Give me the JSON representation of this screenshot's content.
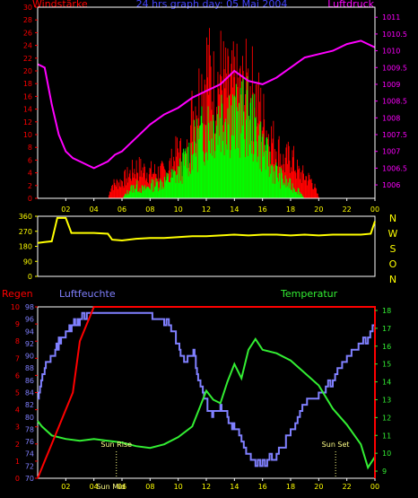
{
  "header": {
    "left_label": "Windstärke",
    "center_label": "24 hrs graph day: 05 Mai 2004",
    "right_label": "Luftdruck"
  },
  "colors": {
    "wind_gust": "#ff0000",
    "wind_avg": "#00ff00",
    "pressure": "#ff00ff",
    "direction": "#ffff00",
    "rain": "#ff0000",
    "humidity": "#8080ff",
    "temperature": "#33ee33",
    "frame": "#ffffff"
  },
  "chart_data": [
    {
      "type": "bar+line",
      "name_wind": "Windstärke",
      "name_pressure": "Luftdruck",
      "x_ticks": [
        "02",
        "04",
        "06",
        "08",
        "10",
        "12",
        "14",
        "16",
        "18",
        "20",
        "22",
        "00"
      ],
      "y_left_ticks": [
        "0",
        "2",
        "4",
        "6",
        "8",
        "10",
        "12",
        "14",
        "16",
        "18",
        "20",
        "22",
        "24",
        "26",
        "28",
        "30"
      ],
      "y_right_ticks": [
        "1006",
        "1006.5",
        "1007",
        "1007.5",
        "1008",
        "1008.5",
        "1009",
        "1009.5",
        "1010",
        "1010.5",
        "1011"
      ],
      "xlim": [
        0,
        24
      ],
      "ylim_left": [
        0,
        30
      ],
      "ylim_right": [
        1005.6,
        1011.3
      ],
      "wind_gust_envelope": [
        [
          5.0,
          0
        ],
        [
          5.2,
          3
        ],
        [
          6.0,
          4
        ],
        [
          7.0,
          7
        ],
        [
          8.0,
          6
        ],
        [
          9.0,
          6
        ],
        [
          9.5,
          8
        ],
        [
          10.0,
          11
        ],
        [
          10.5,
          8
        ],
        [
          11.0,
          20
        ],
        [
          11.5,
          24
        ],
        [
          12.0,
          30
        ],
        [
          12.5,
          25
        ],
        [
          13.0,
          28
        ],
        [
          13.5,
          24
        ],
        [
          14.0,
          25
        ],
        [
          14.5,
          24
        ],
        [
          15.0,
          26
        ],
        [
          15.5,
          23
        ],
        [
          16.0,
          18
        ],
        [
          16.5,
          14
        ],
        [
          17.0,
          12
        ],
        [
          17.5,
          8
        ],
        [
          18.0,
          10
        ],
        [
          18.5,
          6
        ],
        [
          19.0,
          5
        ],
        [
          19.5,
          4
        ],
        [
          20.0,
          0
        ]
      ],
      "wind_avg_envelope": [
        [
          6.0,
          0
        ],
        [
          6.5,
          2
        ],
        [
          7.0,
          3
        ],
        [
          7.5,
          2
        ],
        [
          8.0,
          3
        ],
        [
          9.0,
          4
        ],
        [
          10.0,
          6
        ],
        [
          10.5,
          9
        ],
        [
          11.0,
          12
        ],
        [
          11.5,
          14
        ],
        [
          12.0,
          17
        ],
        [
          12.5,
          18
        ],
        [
          13.0,
          20
        ],
        [
          13.5,
          21
        ],
        [
          14.0,
          18
        ],
        [
          14.5,
          20
        ],
        [
          15.0,
          19
        ],
        [
          15.5,
          16
        ],
        [
          16.0,
          12
        ],
        [
          16.5,
          8
        ],
        [
          17.0,
          6
        ],
        [
          17.5,
          4
        ],
        [
          18.0,
          3
        ],
        [
          18.5,
          2
        ],
        [
          19.0,
          0
        ]
      ],
      "pressure": [
        [
          0,
          1009.6
        ],
        [
          0.5,
          1009.5
        ],
        [
          1,
          1008.4
        ],
        [
          1.5,
          1007.5
        ],
        [
          2,
          1007.0
        ],
        [
          2.5,
          1006.8
        ],
        [
          3,
          1006.7
        ],
        [
          3.5,
          1006.6
        ],
        [
          4,
          1006.5
        ],
        [
          4.5,
          1006.6
        ],
        [
          5,
          1006.7
        ],
        [
          5.5,
          1006.9
        ],
        [
          6,
          1007.0
        ],
        [
          6.5,
          1007.2
        ],
        [
          7,
          1007.4
        ],
        [
          8,
          1007.8
        ],
        [
          9,
          1008.1
        ],
        [
          10,
          1008.3
        ],
        [
          11,
          1008.6
        ],
        [
          12,
          1008.8
        ],
        [
          13,
          1009.0
        ],
        [
          14,
          1009.4
        ],
        [
          15,
          1009.1
        ],
        [
          16,
          1009.0
        ],
        [
          17,
          1009.2
        ],
        [
          18,
          1009.5
        ],
        [
          19,
          1009.8
        ],
        [
          20,
          1009.9
        ],
        [
          21,
          1010.0
        ],
        [
          22,
          1010.2
        ],
        [
          23,
          1010.3
        ],
        [
          23.5,
          1010.2
        ],
        [
          24,
          1010.1
        ]
      ]
    },
    {
      "type": "line",
      "name": "wind direction",
      "y_ticks": [
        "0",
        "90",
        "180",
        "270",
        "360"
      ],
      "direction_labels": [
        "N",
        "W",
        "S",
        "O",
        "N"
      ],
      "ylim": [
        0,
        360
      ],
      "xlim": [
        0,
        24
      ],
      "values": [
        [
          0,
          200
        ],
        [
          0.5,
          205
        ],
        [
          1,
          210
        ],
        [
          1.4,
          350
        ],
        [
          2,
          350
        ],
        [
          2.4,
          260
        ],
        [
          3,
          260
        ],
        [
          4,
          260
        ],
        [
          5,
          255
        ],
        [
          5.3,
          220
        ],
        [
          6,
          215
        ],
        [
          7,
          225
        ],
        [
          8,
          230
        ],
        [
          9,
          230
        ],
        [
          10,
          235
        ],
        [
          11,
          240
        ],
        [
          12,
          240
        ],
        [
          13,
          245
        ],
        [
          14,
          250
        ],
        [
          15,
          245
        ],
        [
          16,
          250
        ],
        [
          17,
          250
        ],
        [
          18,
          245
        ],
        [
          19,
          250
        ],
        [
          20,
          245
        ],
        [
          21,
          250
        ],
        [
          22,
          250
        ],
        [
          23,
          250
        ],
        [
          23.7,
          255
        ],
        [
          24,
          330
        ]
      ]
    },
    {
      "type": "line",
      "name_rain": "Regen",
      "name_humidity": "Luftfeuchte",
      "name_temperature": "Temperatur",
      "x_ticks": [
        "02",
        "04",
        "06",
        "08",
        "10",
        "12",
        "14",
        "16",
        "18",
        "20",
        "22",
        "00"
      ],
      "y_rain_ticks": [
        "0",
        "1",
        "2",
        "3",
        "4",
        "5",
        "6",
        "7",
        "8",
        "9",
        "10"
      ],
      "y_humidity_ticks": [
        "70",
        "72",
        "74",
        "76",
        "78",
        "80",
        "82",
        "84",
        "86",
        "88",
        "90",
        "92",
        "94",
        "96",
        "98"
      ],
      "y_temperature_ticks": [
        "9",
        "10",
        "11",
        "12",
        "13",
        "14",
        "15",
        "16",
        "17",
        "18"
      ],
      "xlim": [
        0,
        24
      ],
      "rain_ylim": [
        0,
        10
      ],
      "humidity_ylim": [
        70,
        98
      ],
      "temperature_ylim": [
        8.6,
        18.2
      ],
      "rain": [
        [
          0,
          0
        ],
        [
          0.5,
          1
        ],
        [
          1,
          2
        ],
        [
          1.5,
          3
        ],
        [
          2,
          4
        ],
        [
          2.5,
          5
        ],
        [
          3,
          8
        ],
        [
          3.5,
          9
        ],
        [
          4,
          10
        ],
        [
          24,
          10
        ],
        [
          24,
          0
        ]
      ],
      "humidity": [
        [
          0,
          84
        ],
        [
          0.5,
          88
        ],
        [
          1,
          90
        ],
        [
          1.5,
          92
        ],
        [
          2,
          94
        ],
        [
          2.5,
          95
        ],
        [
          3,
          96
        ],
        [
          4,
          97
        ],
        [
          6,
          97
        ],
        [
          8,
          97
        ],
        [
          9,
          96
        ],
        [
          10,
          92
        ],
        [
          10.5,
          89
        ],
        [
          11,
          91
        ],
        [
          11.5,
          86
        ],
        [
          12,
          82
        ],
        [
          12.5,
          80
        ],
        [
          13,
          82
        ],
        [
          13.5,
          80
        ],
        [
          14,
          78
        ],
        [
          15,
          74
        ],
        [
          16,
          72
        ],
        [
          17,
          74
        ],
        [
          18,
          78
        ],
        [
          19,
          82
        ],
        [
          20,
          84
        ],
        [
          21,
          86
        ],
        [
          22,
          90
        ],
        [
          23,
          92
        ],
        [
          24,
          95
        ]
      ],
      "temperature": [
        [
          0,
          11.8
        ],
        [
          0.3,
          11.5
        ],
        [
          1,
          11.0
        ],
        [
          2,
          10.8
        ],
        [
          3,
          10.7
        ],
        [
          4,
          10.8
        ],
        [
          5,
          10.7
        ],
        [
          6,
          10.6
        ],
        [
          7,
          10.4
        ],
        [
          8,
          10.3
        ],
        [
          9,
          10.5
        ],
        [
          10,
          10.9
        ],
        [
          11,
          11.5
        ],
        [
          11.5,
          12.5
        ],
        [
          12,
          13.5
        ],
        [
          12.5,
          13.0
        ],
        [
          13,
          12.8
        ],
        [
          13.5,
          14.0
        ],
        [
          14,
          15.0
        ],
        [
          14.5,
          14.2
        ],
        [
          15,
          15.8
        ],
        [
          15.5,
          16.4
        ],
        [
          16,
          15.8
        ],
        [
          17,
          15.6
        ],
        [
          18,
          15.2
        ],
        [
          19,
          14.5
        ],
        [
          20,
          13.8
        ],
        [
          21,
          12.5
        ],
        [
          22,
          11.6
        ],
        [
          23,
          10.5
        ],
        [
          23.5,
          9.2
        ],
        [
          24,
          9.8
        ]
      ],
      "annotations": {
        "sun_rise": "Sun Rise",
        "sun_set": "Sun Set",
        "sun_mid": "Sun Mid",
        "sun_rise_hour": 5.6,
        "sun_set_hour": 21.2,
        "sun_mid_hour": 5.2
      }
    }
  ]
}
